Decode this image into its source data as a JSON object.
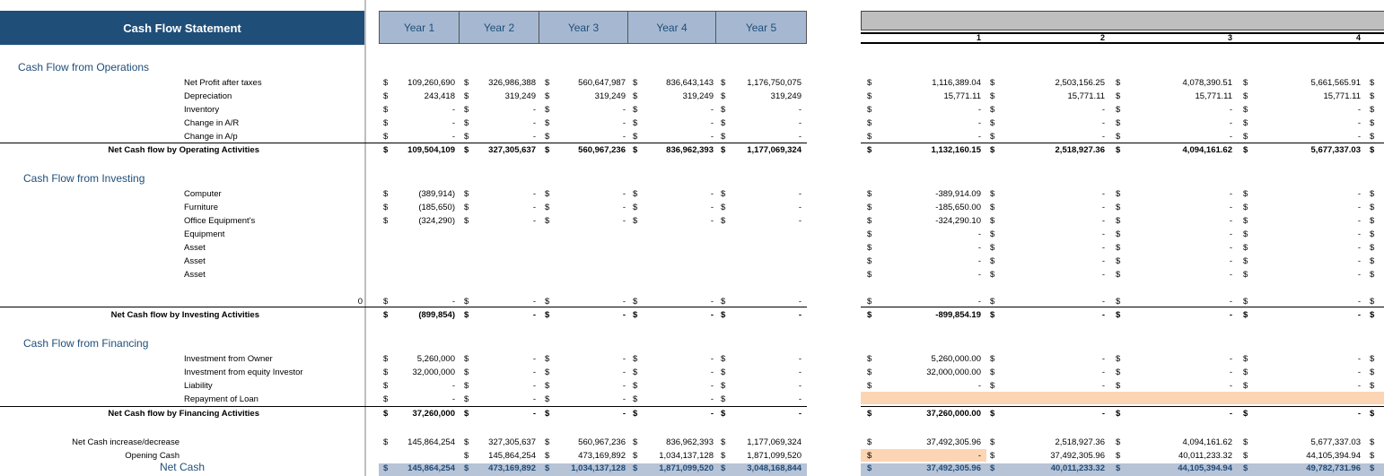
{
  "title": "Cash Flow Statement",
  "years": [
    "Year 1",
    "Year 2",
    "Year 3",
    "Year 4",
    "Year 5"
  ],
  "right_cols": [
    "1",
    "2",
    "3",
    "4"
  ],
  "sections": {
    "operations": "Cash Flow from Operations",
    "investing": "Cash Flow from Investing",
    "financing": "Cash Flow from Financing"
  },
  "rows": [
    {
      "label": "Net Profit after taxes",
      "left": [
        "109,260,690",
        "326,986,388",
        "560,647,987",
        "836,643,143",
        "1,176,750,075"
      ],
      "right": [
        "1,116,389.04",
        "2,503,156.25",
        "4,078,390.51",
        "5,661,565.91"
      ]
    },
    {
      "label": "Depreciation",
      "left": [
        "243,418",
        "319,249",
        "319,249",
        "319,249",
        "319,249"
      ],
      "right": [
        "15,771.11",
        "15,771.11",
        "15,771.11",
        "15,771.11"
      ]
    },
    {
      "label": "Inventory",
      "left": [
        "-",
        "-",
        "-",
        "-",
        "-"
      ],
      "right": [
        "-",
        "-",
        "-",
        "-"
      ]
    },
    {
      "label": "Change in A/R",
      "left": [
        "-",
        "-",
        "-",
        "-",
        "-"
      ],
      "right": [
        "-",
        "-",
        "-",
        "-"
      ]
    },
    {
      "label": "Change in A/p",
      "left": [
        "-",
        "-",
        "-",
        "-",
        "-"
      ],
      "right": [
        "-",
        "-",
        "-",
        "-"
      ]
    },
    {
      "label": "Net Cash flow by Operating Activities",
      "total": true,
      "left": [
        "109,504,109",
        "327,305,637",
        "560,967,236",
        "836,962,393",
        "1,177,069,324"
      ],
      "right": [
        "1,132,160.15",
        "2,518,927.36",
        "4,094,161.62",
        "5,677,337.03"
      ]
    },
    {
      "label": "Computer",
      "left": [
        "(389,914)",
        "-",
        "-",
        "-",
        "-"
      ],
      "right": [
        "-389,914.09",
        "-",
        "-",
        "-"
      ]
    },
    {
      "label": "Furniture",
      "left": [
        "(185,650)",
        "-",
        "-",
        "-",
        "-"
      ],
      "right": [
        "-185,650.00",
        "-",
        "-",
        "-"
      ]
    },
    {
      "label": "Office Equipment's",
      "left": [
        "(324,290)",
        "-",
        "-",
        "-",
        "-"
      ],
      "right": [
        "-324,290.10",
        "-",
        "-",
        "-"
      ]
    },
    {
      "label": "Equipment",
      "right": [
        "-",
        "-",
        "-",
        "-"
      ]
    },
    {
      "label": "Asset",
      "right": [
        "-",
        "-",
        "-",
        "-"
      ]
    },
    {
      "label": "Asset",
      "right": [
        "-",
        "-",
        "-",
        "-"
      ]
    },
    {
      "label": "Asset",
      "right": [
        "-",
        "-",
        "-",
        "-"
      ]
    },
    {
      "label": "0",
      "left": [
        "-",
        "-",
        "-",
        "-",
        "-"
      ],
      "right": [
        "-",
        "-",
        "-",
        "-"
      ]
    },
    {
      "label": "Net Cash flow by Investing Activities",
      "total": true,
      "left": [
        "(899,854)",
        "-",
        "-",
        "-",
        "-"
      ],
      "right": [
        "-899,854.19",
        "-",
        "-",
        "-"
      ]
    },
    {
      "label": "Investment from Owner",
      "left": [
        "5,260,000",
        "-",
        "-",
        "-",
        "-"
      ],
      "right": [
        "5,260,000.00",
        "-",
        "-",
        "-"
      ]
    },
    {
      "label": "Investment from  equity Investor",
      "left": [
        "32,000,000",
        "-",
        "-",
        "-",
        "-"
      ],
      "right": [
        "32,000,000.00",
        "-",
        "-",
        "-"
      ]
    },
    {
      "label": "Liability",
      "left": [
        "-",
        "-",
        "-",
        "-",
        "-"
      ],
      "right": [
        "-",
        "-",
        "-",
        "-"
      ]
    },
    {
      "label": "Repayment of Loan",
      "left": [
        "-",
        "-",
        "-",
        "-",
        "-"
      ]
    },
    {
      "label": "Net Cash flow by Financing Activities",
      "total": true,
      "left": [
        "37,260,000",
        "-",
        "-",
        "-",
        "-"
      ],
      "right": [
        "37,260,000.00",
        "-",
        "-",
        "-"
      ]
    },
    {
      "label": "Net Cash increase/decrease",
      "left": [
        "145,864,254",
        "327,305,637",
        "560,967,236",
        "836,962,393",
        "1,177,069,324"
      ],
      "right": [
        "37,492,305.96",
        "2,518,927.36",
        "4,094,161.62",
        "5,677,337.03"
      ]
    },
    {
      "label": "Opening Cash",
      "left": [
        "",
        "145,864,254",
        "473,169,892",
        "1,034,137,128",
        "1,871,099,520"
      ],
      "right": [
        "-",
        "37,492,305.96",
        "40,011,233.32",
        "44,105,394.94"
      ]
    },
    {
      "label": "Net Cash",
      "net": true,
      "left": [
        "145,864,254",
        "473,169,892",
        "1,034,137,128",
        "1,871,099,520",
        "3,048,168,844"
      ],
      "right": [
        "37,492,305.96",
        "40,011,233.32",
        "44,105,394.94",
        "49,782,731.96"
      ]
    }
  ],
  "currency": "$",
  "colors": {
    "header_bg": "#1f4e79",
    "year_bg": "#a6b8d1",
    "peach": "#fcd5b4",
    "netcash_bg": "#b7c3d6"
  }
}
